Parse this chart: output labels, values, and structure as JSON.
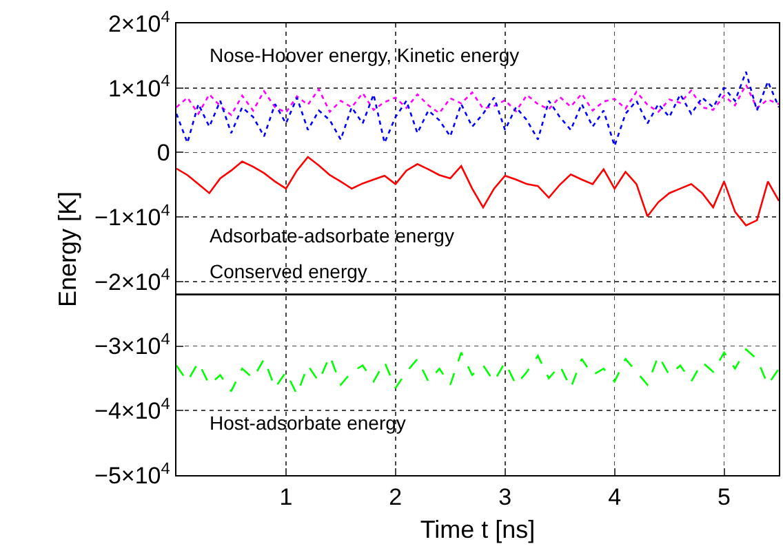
{
  "chart_data": {
    "type": "line",
    "xlabel": "Time t [ns]",
    "ylabel": "Energy [K]",
    "x": [
      0,
      0.1,
      0.2,
      0.3,
      0.4,
      0.5,
      0.6,
      0.7,
      0.8,
      0.9,
      1,
      1.1,
      1.2,
      1.3,
      1.4,
      1.5,
      1.6,
      1.7,
      1.8,
      1.9,
      2,
      2.1,
      2.2,
      2.3,
      2.4,
      2.5,
      2.6,
      2.7,
      2.8,
      2.9,
      3,
      3.1,
      3.2,
      3.3,
      3.4,
      3.5,
      3.6,
      3.7,
      3.8,
      3.9,
      4,
      4.1,
      4.2,
      4.3,
      4.4,
      4.5,
      4.6,
      4.7,
      4.8,
      4.9,
      5,
      5.1,
      5.2,
      5.3,
      5.4,
      5.5
    ],
    "series": [
      {
        "color": "#ff00ff",
        "line_style": "dotted",
        "values": [
          7000,
          8500,
          6000,
          9000,
          7200,
          5800,
          8800,
          6500,
          9500,
          7000,
          6200,
          8700,
          7400,
          9800,
          6300,
          8000,
          7000,
          9200,
          6600,
          7800,
          8500,
          6900,
          9000,
          7300,
          6100,
          8400,
          7600,
          9300,
          6800,
          7200,
          8100,
          6400,
          8900,
          7500,
          6700,
          8600,
          7100,
          9100,
          6500,
          7900,
          8300,
          6800,
          9400,
          7400,
          6300,
          8200,
          7700,
          9600,
          7000,
          6600,
          8800,
          7300,
          10500,
          6900,
          8200,
          7500
        ]
      },
      {
        "color": "#0000ff",
        "line_style": "dotted",
        "values": [
          6000,
          1500,
          7500,
          4000,
          8000,
          3000,
          7000,
          5500,
          2500,
          7500,
          4500,
          8500,
          3500,
          6500,
          5000,
          2000,
          7000,
          4500,
          9000,
          1500,
          5500,
          8000,
          3000,
          6500,
          5000,
          2500,
          7500,
          4000,
          6000,
          8500,
          3500,
          7000,
          5000,
          2000,
          8000,
          5500,
          3500,
          7500,
          4000,
          6500,
          1000,
          6000,
          8000,
          4500,
          7500,
          5500,
          9000,
          6000,
          8500,
          7000,
          10000,
          8000,
          12500,
          6500,
          11000,
          7000
        ]
      },
      {
        "color": "#ff0000",
        "line_style": "solid",
        "values": [
          -2500,
          -3500,
          -4900,
          -6300,
          -4000,
          -2800,
          -1400,
          -2200,
          -3200,
          -4500,
          -5600,
          -2800,
          -700,
          -2000,
          -3500,
          -4500,
          -5600,
          -4800,
          -4200,
          -3600,
          -4900,
          -2800,
          -1800,
          -2600,
          -3500,
          -4000,
          -2100,
          -5600,
          -8500,
          -5600,
          -3600,
          -4200,
          -4900,
          -5200,
          -7000,
          -5000,
          -3400,
          -4200,
          -4900,
          -2600,
          -5600,
          -3000,
          -4900,
          -9900,
          -7700,
          -6300,
          -5600,
          -4900,
          -6300,
          -8500,
          -4500,
          -9200,
          -11300,
          -10500,
          -4500,
          -7500
        ]
      },
      {
        "color": "#000000",
        "line_style": "solid",
        "x": [
          0,
          5.5
        ],
        "values": [
          -22000,
          -22000
        ]
      },
      {
        "color": "#00ff00",
        "line_style": "dashed",
        "values": [
          -33000,
          -35500,
          -32500,
          -36000,
          -34500,
          -37000,
          -33500,
          -35000,
          -32000,
          -36500,
          -34000,
          -37500,
          -33000,
          -35500,
          -31500,
          -36000,
          -34000,
          -33000,
          -35500,
          -32500,
          -36500,
          -34000,
          -32000,
          -35500,
          -33500,
          -36000,
          -31000,
          -34500,
          -33000,
          -35500,
          -32500,
          -36000,
          -34000,
          -31500,
          -35000,
          -33000,
          -36500,
          -32000,
          -34500,
          -33500,
          -35500,
          -32000,
          -34000,
          -36000,
          -31500,
          -34500,
          -33000,
          -35500,
          -32500,
          -34000,
          -31000,
          -33500,
          -30500,
          -32000,
          -36000,
          -33500
        ]
      }
    ],
    "annotations": [
      "Nose-Hoover energy, Kinetic energy",
      "Adsorbate-adsorbate energy",
      "Conserved energy",
      "Host-adsorbate energy"
    ],
    "xlim": [
      0,
      5.5
    ],
    "xticks": [
      1,
      2,
      3,
      4,
      5
    ],
    "ylim": [
      -50000,
      20000
    ],
    "yticks": [
      {
        "value": -50000,
        "label": "−5×10$^{4}$"
      },
      {
        "value": -40000,
        "label": "−4×10$^{4}$"
      },
      {
        "value": -30000,
        "label": "−3×10$^{4}$"
      },
      {
        "value": -20000,
        "label": "−2×10$^{4}$"
      },
      {
        "value": -10000,
        "label": "−1×10$^{4}$"
      },
      0,
      {
        "value": 10000,
        "label": "1×10$^{4}$"
      },
      {
        "value": 20000,
        "label": "2×10$^{4}$"
      }
    ],
    "grid": true
  }
}
